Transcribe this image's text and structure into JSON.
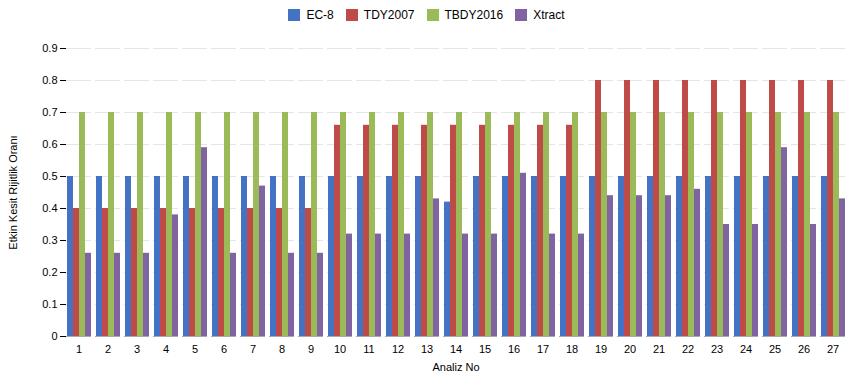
{
  "chart_data": {
    "type": "bar",
    "xlabel": "Analiz No",
    "ylabel": "Etkin Kesit Rijitlik Oranı",
    "categories": [
      1,
      2,
      3,
      4,
      5,
      6,
      7,
      8,
      9,
      10,
      11,
      12,
      13,
      14,
      15,
      16,
      17,
      18,
      19,
      20,
      21,
      22,
      23,
      24,
      25,
      26,
      27
    ],
    "series": [
      {
        "name": "EC-8",
        "color": "#4472c4",
        "values": [
          0.5,
          0.5,
          0.5,
          0.5,
          0.5,
          0.5,
          0.5,
          0.5,
          0.5,
          0.5,
          0.5,
          0.5,
          0.5,
          0.42,
          0.5,
          0.5,
          0.5,
          0.5,
          0.5,
          0.5,
          0.5,
          0.5,
          0.5,
          0.5,
          0.5,
          0.5,
          0.5
        ]
      },
      {
        "name": "TDY2007",
        "color": "#be4b48",
        "values": [
          0.4,
          0.4,
          0.4,
          0.4,
          0.4,
          0.4,
          0.4,
          0.4,
          0.4,
          0.66,
          0.66,
          0.66,
          0.66,
          0.66,
          0.66,
          0.66,
          0.66,
          0.66,
          0.8,
          0.8,
          0.8,
          0.8,
          0.8,
          0.8,
          0.8,
          0.8,
          0.8
        ]
      },
      {
        "name": "TBDY2016",
        "color": "#9bbb59",
        "values": [
          0.7,
          0.7,
          0.7,
          0.7,
          0.7,
          0.7,
          0.7,
          0.7,
          0.7,
          0.7,
          0.7,
          0.7,
          0.7,
          0.7,
          0.7,
          0.7,
          0.7,
          0.7,
          0.7,
          0.7,
          0.7,
          0.7,
          0.7,
          0.7,
          0.7,
          0.7,
          0.7
        ]
      },
      {
        "name": "Xtract",
        "color": "#8064a2",
        "values": [
          0.26,
          0.26,
          0.26,
          0.38,
          0.59,
          0.26,
          0.47,
          0.26,
          0.26,
          0.32,
          0.32,
          0.32,
          0.43,
          0.32,
          0.32,
          0.51,
          0.32,
          0.32,
          0.44,
          0.44,
          0.44,
          0.46,
          0.35,
          0.35,
          0.59,
          0.35,
          0.43
        ]
      }
    ],
    "ylim": [
      0,
      0.9
    ],
    "yticks": [
      0,
      0.1,
      0.2,
      0.3,
      0.4,
      0.5,
      0.6,
      0.7,
      0.8,
      0.9
    ],
    "grid": true,
    "legend": "top"
  }
}
